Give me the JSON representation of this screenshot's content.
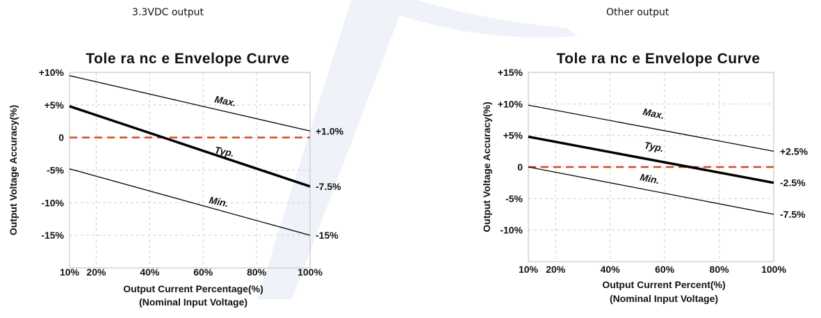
{
  "headings": {
    "left": "3.3VDC output",
    "right": "Other output"
  },
  "watermark_color": "#1f4fb0",
  "reference_color": "#d14a1c",
  "chart_data": [
    {
      "type": "line",
      "title": "Tole ra nc e Envelope Curve",
      "ylabel": "Output Voltage Accuracy(%)",
      "xlabel": "Output Current Percentage(%)",
      "xlabel2": "(Nominal Input Voltage)",
      "x_ticks": [
        "10%",
        "20%",
        "40%",
        "60%",
        "80%",
        "100%"
      ],
      "x_tick_values": [
        10,
        20,
        40,
        60,
        80,
        100
      ],
      "y_ticks": [
        "+10%",
        "+5%",
        "0",
        "-5%",
        "-10%",
        "-15%"
      ],
      "y_tick_values": [
        10,
        5,
        0,
        -5,
        -10,
        -15
      ],
      "xlim": [
        10,
        100
      ],
      "ylim": [
        -20,
        10
      ],
      "grid": true,
      "series": [
        {
          "name": "Max.",
          "x": [
            10,
            100
          ],
          "y": [
            9.5,
            1.0
          ],
          "end_label": "+1.0%"
        },
        {
          "name": "Typ.",
          "x": [
            10,
            100
          ],
          "y": [
            4.8,
            -7.5
          ],
          "end_label": "-7.5%"
        },
        {
          "name": "Min.",
          "x": [
            10,
            100
          ],
          "y": [
            -4.8,
            -15.0
          ],
          "end_label": "-15%"
        }
      ],
      "reference_y": 0
    },
    {
      "type": "line",
      "title": "Tole ra nc e Envelope Curve",
      "ylabel": "Output Voltage Accuracy(%)",
      "xlabel": "Output Current Percent(%)",
      "xlabel2": "(Nominal Input Voltage)",
      "x_ticks": [
        "10%",
        "20%",
        "40%",
        "60%",
        "80%",
        "100%"
      ],
      "x_tick_values": [
        10,
        20,
        40,
        60,
        80,
        100
      ],
      "y_ticks": [
        "+15%",
        "+10%",
        "+5%",
        "0",
        "-5%",
        "-10%"
      ],
      "y_tick_values": [
        15,
        10,
        5,
        0,
        -5,
        -10
      ],
      "xlim": [
        10,
        100
      ],
      "ylim": [
        -15,
        15
      ],
      "grid": true,
      "series": [
        {
          "name": "Max.",
          "x": [
            10,
            100
          ],
          "y": [
            9.8,
            2.5
          ],
          "end_label": "+2.5%"
        },
        {
          "name": "Typ.",
          "x": [
            10,
            100
          ],
          "y": [
            4.8,
            -2.5
          ],
          "end_label": "-2.5%"
        },
        {
          "name": "Min.",
          "x": [
            10,
            100
          ],
          "y": [
            0.0,
            -7.5
          ],
          "end_label": "-7.5%"
        }
      ],
      "reference_y": 0
    }
  ]
}
